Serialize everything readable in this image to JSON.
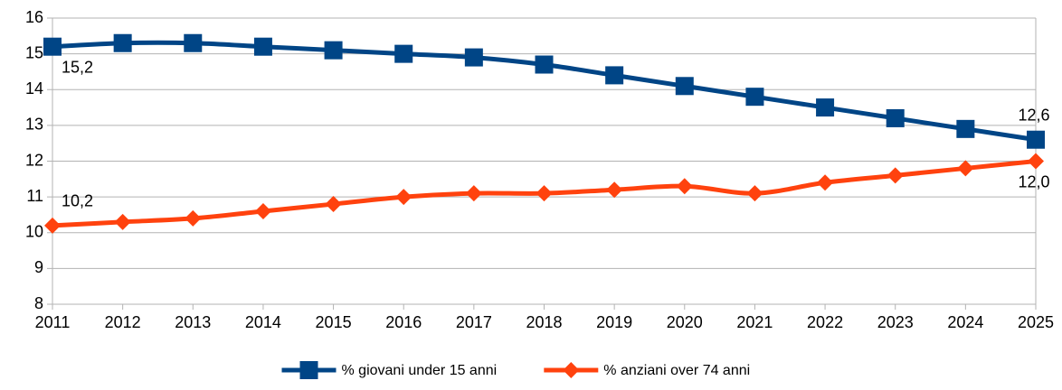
{
  "chart_data": {
    "type": "line",
    "x": [
      2011,
      2012,
      2013,
      2014,
      2015,
      2016,
      2017,
      2018,
      2019,
      2020,
      2021,
      2022,
      2023,
      2024,
      2025
    ],
    "xlim": [
      2011,
      2025
    ],
    "xticks": [
      2011,
      2012,
      2013,
      2014,
      2015,
      2016,
      2017,
      2018,
      2019,
      2020,
      2021,
      2022,
      2023,
      2024,
      2025
    ],
    "ylim": [
      8,
      16
    ],
    "yticks": [
      8,
      9,
      10,
      11,
      12,
      13,
      14,
      15,
      16
    ],
    "grid": true,
    "legend": "bottom",
    "series": [
      {
        "name": "% giovani under 15 anni",
        "color": "#004586",
        "marker": "square",
        "values": [
          15.2,
          15.3,
          15.3,
          15.2,
          15.1,
          15.0,
          14.9,
          14.7,
          14.4,
          14.1,
          13.8,
          13.5,
          13.2,
          12.9,
          12.6
        ],
        "value_labels": [
          "15,2",
          null,
          null,
          null,
          null,
          null,
          null,
          null,
          null,
          null,
          null,
          null,
          null,
          null,
          "12,6"
        ]
      },
      {
        "name": "% anziani over 74 anni",
        "color": "#ff420e",
        "marker": "diamond",
        "values": [
          10.2,
          10.3,
          10.4,
          10.6,
          10.8,
          11.0,
          11.1,
          11.1,
          11.2,
          11.3,
          11.1,
          11.4,
          11.6,
          11.8,
          12.0
        ],
        "value_labels": [
          "10,2",
          null,
          null,
          null,
          null,
          null,
          null,
          null,
          null,
          null,
          null,
          null,
          null,
          null,
          "12,0"
        ]
      }
    ]
  }
}
